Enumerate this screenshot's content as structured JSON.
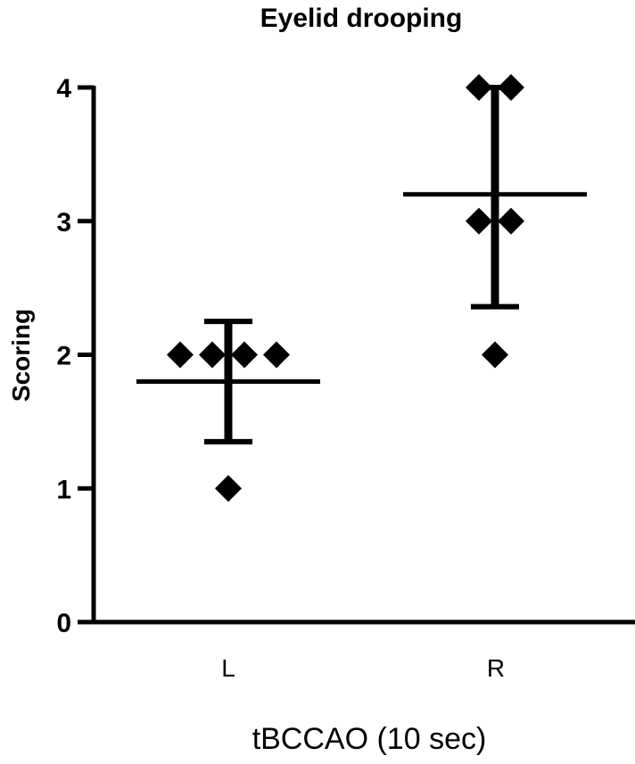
{
  "chart_data": {
    "type": "scatter",
    "title": "Eyelid drooping",
    "xlabel": "tBCCAO (10 sec)",
    "ylabel": "Scoring",
    "categories": [
      "L",
      "R"
    ],
    "ylim": [
      0,
      4
    ],
    "yticks": [
      "0",
      "1",
      "2",
      "3",
      "4"
    ],
    "grid": false,
    "legend": "none",
    "marker": "diamond",
    "color": "#000000",
    "groups": [
      {
        "category": "L",
        "points": [
          2,
          2,
          2,
          2,
          1
        ],
        "mean": 1.8,
        "error_low": 1.35,
        "error_high": 2.25
      },
      {
        "category": "R",
        "points": [
          4,
          4,
          3,
          3,
          2
        ],
        "mean": 3.2,
        "error_low": 2.36,
        "error_high": 4.0
      }
    ]
  }
}
